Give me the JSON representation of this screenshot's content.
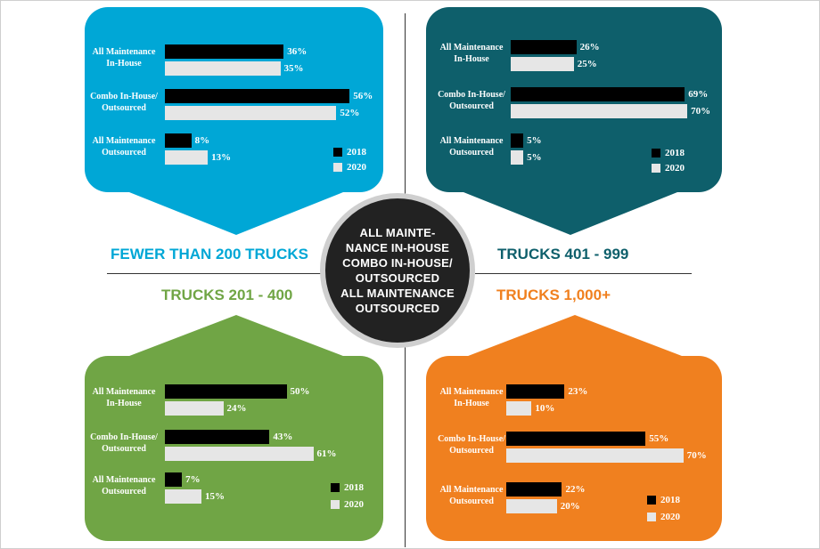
{
  "chart_data": [
    {
      "type": "bar",
      "group_label": "FEWER THAN 200 TRUCKS",
      "categories": [
        "All Maintenance In-House",
        "Combo In-House/ Outsourced",
        "All Maintenance Outsourced"
      ],
      "category_lines": [
        [
          "All Maintenance",
          "In-House"
        ],
        [
          "Combo In-House/",
          "Outsourced"
        ],
        [
          "All Maintenance",
          "Outsourced"
        ]
      ],
      "series": [
        {
          "name": "2018",
          "values": [
            36,
            56,
            8
          ],
          "labels": [
            "36%",
            "56%",
            "8%"
          ]
        },
        {
          "name": "2020",
          "values": [
            35,
            52,
            13
          ],
          "labels": [
            "35%",
            "52%",
            "13%"
          ]
        }
      ],
      "unit": "%"
    },
    {
      "type": "bar",
      "group_label": "TRUCKS 401 - 999",
      "categories": [
        "All Maintenance In-House",
        "Combo In-House/ Outsourced",
        "All Maintenance Outsourced"
      ],
      "category_lines": [
        [
          "All Maintenance",
          "In-House"
        ],
        [
          "Combo In-House/",
          "Outsourced"
        ],
        [
          "All Maintenance",
          "Outsourced"
        ]
      ],
      "series": [
        {
          "name": "2018",
          "values": [
            26,
            69,
            5
          ],
          "labels": [
            "26%",
            "69%",
            "5%"
          ]
        },
        {
          "name": "2020",
          "values": [
            25,
            70,
            5
          ],
          "labels": [
            "25%",
            "70%",
            "5%"
          ]
        }
      ],
      "unit": "%"
    },
    {
      "type": "bar",
      "group_label": "TRUCKS 201 - 400",
      "categories": [
        "All Maintenance In-House",
        "Combo In-House/ Outsourced",
        "All Maintenance Outsourced"
      ],
      "category_lines": [
        [
          "All Maintenance",
          "In-House"
        ],
        [
          "Combo In-House/",
          "Outsourced"
        ],
        [
          "All Maintenance",
          "Outsourced"
        ]
      ],
      "series": [
        {
          "name": "2018",
          "values": [
            50,
            43,
            7
          ],
          "labels": [
            "50%",
            "43%",
            "7%"
          ]
        },
        {
          "name": "2020",
          "values": [
            24,
            61,
            15
          ],
          "labels": [
            "24%",
            "61%",
            "15%"
          ]
        }
      ],
      "unit": "%"
    },
    {
      "type": "bar",
      "group_label": "TRUCKS 1,000+",
      "categories": [
        "All Maintenance In-House",
        "Combo In-House/ Outsourced",
        "All Maintenance Outsourced"
      ],
      "category_lines": [
        [
          "All Maintenance",
          "In-House"
        ],
        [
          "Combo In-House/",
          "Outsourced"
        ],
        [
          "All Maintenance",
          "Outsourced"
        ]
      ],
      "series": [
        {
          "name": "2018",
          "values": [
            23,
            55,
            22
          ],
          "labels": [
            "23%",
            "55%",
            "22%"
          ]
        },
        {
          "name": "2020",
          "values": [
            10,
            70,
            20
          ],
          "labels": [
            "10%",
            "70%",
            "20%"
          ]
        }
      ],
      "unit": "%"
    }
  ],
  "legend": {
    "y2018": "2018",
    "y2020": "2020"
  },
  "center": {
    "line1": "ALL MAINTE-",
    "line2": "NANCE IN-HOUSE",
    "line3": "COMBO IN-HOUSE/",
    "line4": "OUTSOURCED",
    "line5": "ALL MAINTENANCE",
    "line6": "OUTSOURCED"
  },
  "colors": {
    "small": "#00a7d6",
    "large_mid": "#0e5f6b",
    "mid": "#70a545",
    "large": "#f0801f",
    "bar_2018": "#000000",
    "bar_2020": "#e6e6e6",
    "center_circle": "#222222"
  }
}
